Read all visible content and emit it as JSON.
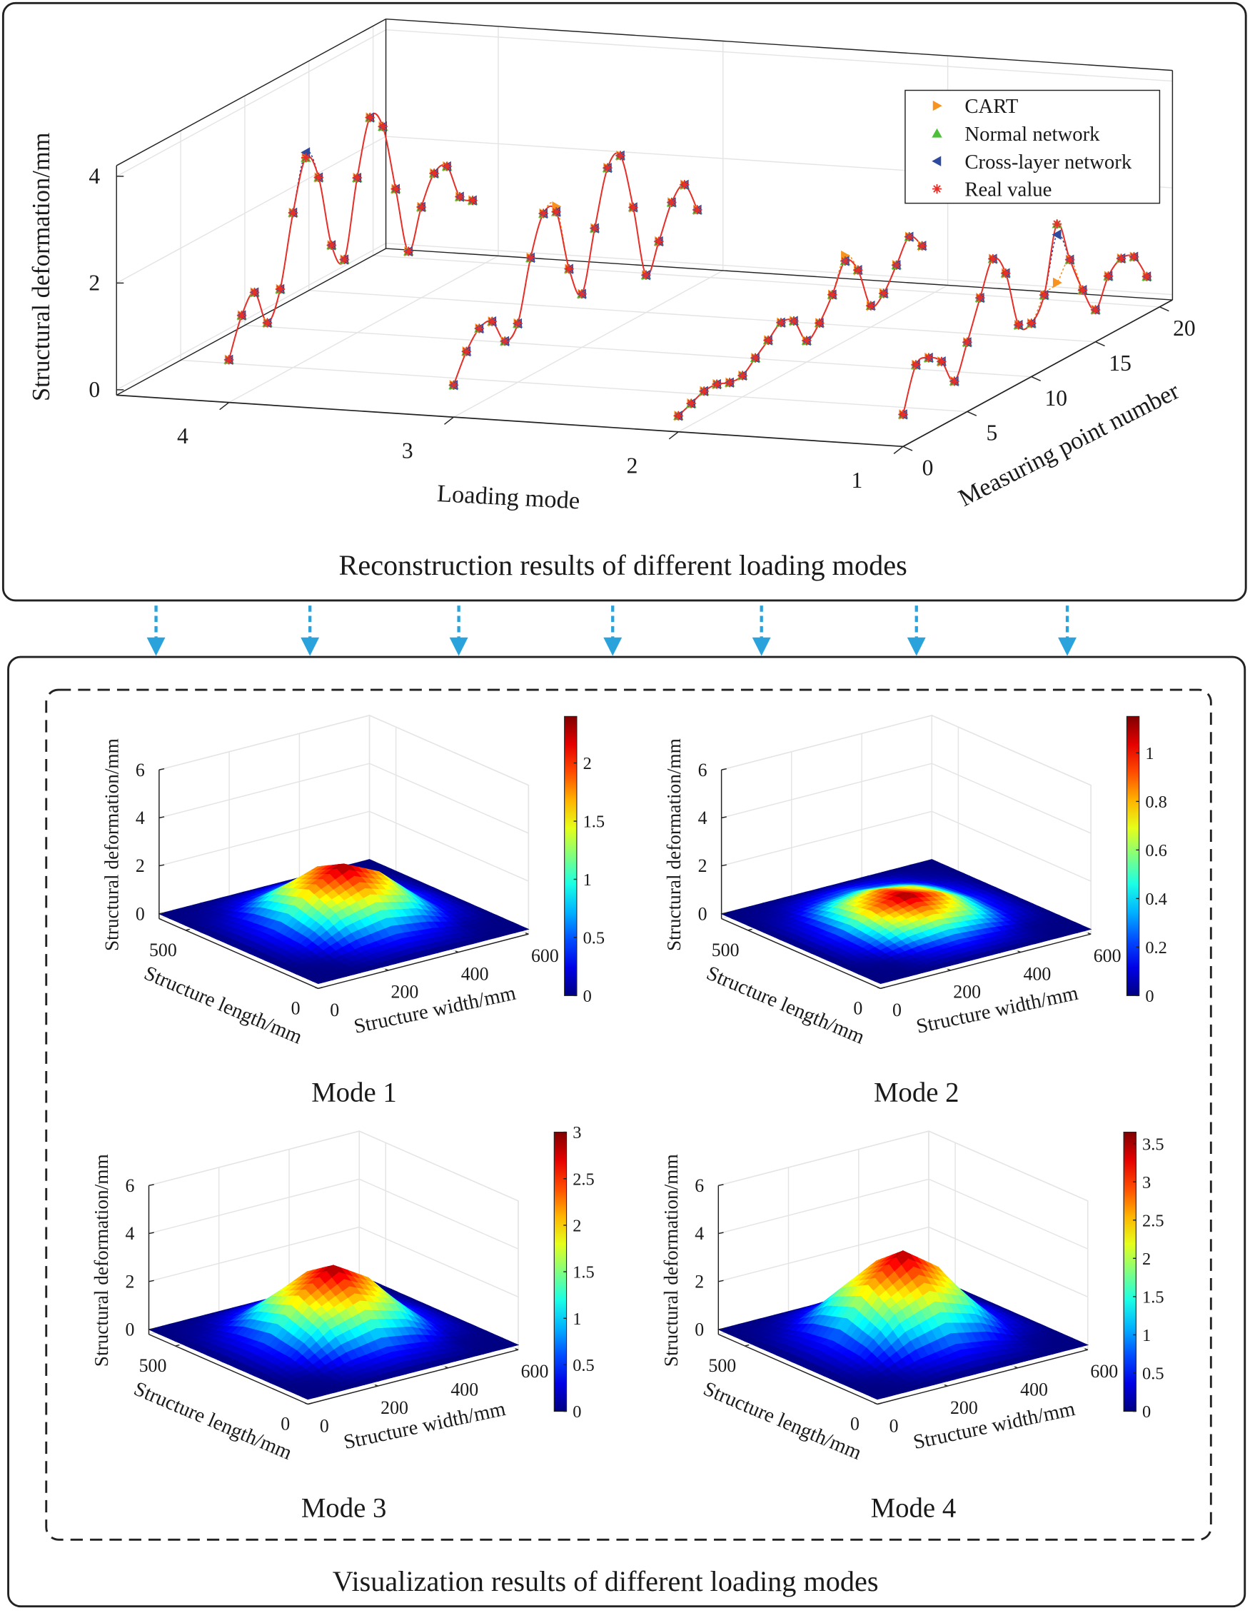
{
  "caption_top": "Reconstruction results of different loading modes",
  "caption_bottom": "Visualization results of different loading modes",
  "chart_data": [
    {
      "type": "line3d",
      "xlabel": "Loading mode",
      "ylabel": "Measuring point number",
      "zlabel": "Structural deformation/mm",
      "modes": [
        1,
        2,
        3,
        4
      ],
      "x": [
        0,
        1,
        2,
        3,
        4,
        5,
        6,
        7,
        8,
        9,
        10,
        11,
        12,
        13,
        14,
        15,
        16,
        17,
        18,
        19
      ],
      "xlim": [
        1,
        4.5
      ],
      "xticks": [
        1,
        2,
        3,
        4
      ],
      "ylim": [
        0,
        21
      ],
      "yticks": [
        0,
        5,
        10,
        15,
        20
      ],
      "zlim": [
        -0.1,
        4.2
      ],
      "zticks": [
        0,
        2,
        4
      ],
      "grid": true,
      "legend": "upper right",
      "series": [
        {
          "name": "CART",
          "color": "#f7931e",
          "marker": "triangle-right",
          "values": [
            [
              0.5,
              1.3,
              1.3,
              1.1,
              0.6,
              1.2,
              1.9,
              2.5,
              2.1,
              1.0,
              0.9,
              1.3,
              1.4,
              1.7,
              1.0,
              0.5,
              1.0,
              1.2,
              1.1,
              0.6
            ],
            [
              0.2,
              0.3,
              0.4,
              0.4,
              0.3,
              0.3,
              0.5,
              0.7,
              0.9,
              0.8,
              0.3,
              0.5,
              0.9,
              1.5,
              1.1,
              0.3,
              0.4,
              0.8,
              1.2,
              0.9
            ],
            [
              0.5,
              1.0,
              1.3,
              1.3,
              0.8,
              1.0,
              2.1,
              2.8,
              2.8,
              1.5,
              0.9,
              2.0,
              3.0,
              3.1,
              2.0,
              0.6,
              1.1,
              1.7,
              1.9,
              1.3
            ],
            [
              0.7,
              1.4,
              1.7,
              1.0,
              1.5,
              2.8,
              3.7,
              3.2,
              1.8,
              1.4,
              2.8,
              3.8,
              3.5,
              2.2,
              0.9,
              1.6,
              2.1,
              2.1,
              1.4,
              1.2
            ]
          ]
        },
        {
          "name": "Normal network",
          "color": "#4dbf3a",
          "marker": "triangle-up",
          "values": [
            [
              0.5,
              1.3,
              1.3,
              1.1,
              0.6,
              1.2,
              1.9,
              2.5,
              2.1,
              1.0,
              0.9,
              1.3,
              2.5,
              1.7,
              1.0,
              0.5,
              1.0,
              1.2,
              1.1,
              0.6
            ],
            [
              0.2,
              0.3,
              0.4,
              0.4,
              0.3,
              0.3,
              0.5,
              0.7,
              0.9,
              0.8,
              0.3,
              0.5,
              0.9,
              1.4,
              1.1,
              0.3,
              0.4,
              0.8,
              1.2,
              0.9
            ],
            [
              0.5,
              1.0,
              1.3,
              1.3,
              0.8,
              1.0,
              2.1,
              2.8,
              2.7,
              1.5,
              0.9,
              2.0,
              3.0,
              3.1,
              2.0,
              0.6,
              1.1,
              1.7,
              1.9,
              1.3
            ],
            [
              0.7,
              1.4,
              1.7,
              1.0,
              1.5,
              2.8,
              3.7,
              3.2,
              1.8,
              1.4,
              2.8,
              3.8,
              3.5,
              2.2,
              0.9,
              1.6,
              2.1,
              2.1,
              1.4,
              1.2
            ]
          ]
        },
        {
          "name": "Cross-layer network",
          "color": "#2e4a9e",
          "marker": "triangle-left",
          "values": [
            [
              0.5,
              1.3,
              1.3,
              1.1,
              0.6,
              1.2,
              1.9,
              2.5,
              2.1,
              1.0,
              0.9,
              1.3,
              2.3,
              1.7,
              1.0,
              0.5,
              1.0,
              1.2,
              1.1,
              0.6
            ],
            [
              0.2,
              0.3,
              0.4,
              0.4,
              0.3,
              0.3,
              0.5,
              0.7,
              0.9,
              0.8,
              0.3,
              0.5,
              0.9,
              1.4,
              1.1,
              0.3,
              0.4,
              0.8,
              1.2,
              0.9
            ],
            [
              0.5,
              1.0,
              1.3,
              1.3,
              0.8,
              1.0,
              2.1,
              2.8,
              2.7,
              1.5,
              0.9,
              2.0,
              3.0,
              3.1,
              2.0,
              0.6,
              1.1,
              1.7,
              1.9,
              1.3
            ],
            [
              0.7,
              1.4,
              1.7,
              1.0,
              1.5,
              2.8,
              3.8,
              3.2,
              1.8,
              1.4,
              2.8,
              3.8,
              3.5,
              2.2,
              0.9,
              1.6,
              2.1,
              2.1,
              1.4,
              1.2
            ]
          ]
        },
        {
          "name": "Real value",
          "color": "#e8302a",
          "marker": "asterisk",
          "values": [
            [
              0.5,
              1.3,
              1.3,
              1.1,
              0.6,
              1.2,
              1.9,
              2.5,
              2.1,
              1.0,
              0.9,
              1.3,
              2.5,
              1.7,
              1.0,
              0.5,
              1.0,
              1.2,
              1.1,
              0.6
            ],
            [
              0.2,
              0.3,
              0.4,
              0.4,
              0.3,
              0.3,
              0.5,
              0.7,
              0.9,
              0.8,
              0.3,
              0.5,
              0.9,
              1.4,
              1.1,
              0.3,
              0.4,
              0.8,
              1.2,
              0.9
            ],
            [
              0.5,
              1.0,
              1.3,
              1.3,
              0.8,
              1.0,
              2.1,
              2.8,
              2.7,
              1.5,
              0.9,
              2.0,
              3.0,
              3.1,
              2.0,
              0.6,
              1.1,
              1.7,
              1.9,
              1.3
            ],
            [
              0.7,
              1.4,
              1.7,
              1.0,
              1.5,
              2.8,
              3.7,
              3.2,
              1.8,
              1.4,
              2.8,
              3.8,
              3.5,
              2.2,
              0.9,
              1.6,
              2.1,
              2.1,
              1.4,
              1.2
            ]
          ]
        }
      ]
    },
    {
      "type": "surface",
      "title": "Mode 1",
      "xlabel": "Structure width/mm",
      "ylabel": "Structure length/mm",
      "zlabel": "Structural deformation/mm",
      "x": [
        0,
        100,
        200,
        300,
        400,
        500,
        600
      ],
      "y": [
        0,
        100,
        200,
        300,
        400,
        500,
        600
      ],
      "z": [
        [
          0,
          0,
          0,
          0,
          0,
          0,
          0
        ],
        [
          0,
          0.05,
          0.3,
          0.45,
          0.3,
          0.05,
          0
        ],
        [
          0,
          0.3,
          1.2,
          1.6,
          1.2,
          0.3,
          0
        ],
        [
          0,
          0.4,
          1.7,
          2.4,
          1.7,
          0.4,
          0
        ],
        [
          0,
          0.3,
          1.3,
          1.8,
          1.3,
          0.3,
          0
        ],
        [
          0,
          0.1,
          0.4,
          0.6,
          0.4,
          0.1,
          0
        ],
        [
          0,
          0,
          0,
          0,
          0,
          0,
          0
        ]
      ],
      "xlim": [
        0,
        600
      ],
      "xticks": [
        0,
        200,
        400,
        600
      ],
      "ylim": [
        0,
        600
      ],
      "yticks": [
        0,
        500
      ],
      "zlim": [
        -0.2,
        6
      ],
      "zticks": [
        0,
        2,
        4,
        6
      ],
      "grid": true,
      "colormap": "jet",
      "clim": [
        0,
        2.4
      ],
      "cticks": [
        0,
        0.5,
        1,
        1.5,
        2
      ]
    },
    {
      "type": "surface",
      "title": "Mode 2",
      "xlabel": "Structure width/mm",
      "ylabel": "Structure length/mm",
      "zlabel": "Structural deformation/mm",
      "x": [
        0,
        100,
        200,
        300,
        400,
        500,
        600
      ],
      "y": [
        0,
        100,
        200,
        300,
        400,
        500,
        600
      ],
      "z": [
        [
          0,
          0,
          0,
          0,
          0,
          0,
          0
        ],
        [
          0,
          0.02,
          0.14,
          0.22,
          0.14,
          0.02,
          0
        ],
        [
          0,
          0.14,
          0.58,
          0.77,
          0.58,
          0.14,
          0
        ],
        [
          0,
          0.19,
          0.82,
          1.15,
          0.82,
          0.19,
          0
        ],
        [
          0,
          0.14,
          0.62,
          0.86,
          0.62,
          0.14,
          0
        ],
        [
          0,
          0.05,
          0.19,
          0.29,
          0.19,
          0.05,
          0
        ],
        [
          0,
          0,
          0,
          0,
          0,
          0,
          0
        ]
      ],
      "xlim": [
        0,
        600
      ],
      "xticks": [
        0,
        200,
        400,
        600
      ],
      "ylim": [
        0,
        600
      ],
      "yticks": [
        0,
        500
      ],
      "zlim": [
        -0.2,
        6
      ],
      "zticks": [
        0,
        2,
        4,
        6
      ],
      "grid": true,
      "colormap": "jet",
      "clim": [
        0,
        1.15
      ],
      "cticks": [
        0,
        0.2,
        0.4,
        0.6,
        0.8,
        1
      ]
    },
    {
      "type": "surface",
      "title": "Mode 3",
      "xlabel": "Structure width/mm",
      "ylabel": "Structure length/mm",
      "zlabel": "Structural deformation/mm",
      "x": [
        0,
        100,
        200,
        300,
        400,
        500,
        600
      ],
      "y": [
        0,
        100,
        200,
        300,
        400,
        500,
        600
      ],
      "z": [
        [
          0,
          0,
          0,
          0,
          0,
          0,
          0
        ],
        [
          0,
          0.06,
          0.38,
          0.56,
          0.38,
          0.06,
          0
        ],
        [
          0,
          0.38,
          1.5,
          2.0,
          1.5,
          0.38,
          0
        ],
        [
          0,
          0.5,
          2.1,
          3.0,
          2.1,
          0.5,
          0
        ],
        [
          0,
          0.38,
          1.6,
          2.25,
          1.6,
          0.38,
          0
        ],
        [
          0,
          0.12,
          0.5,
          0.75,
          0.5,
          0.12,
          0
        ],
        [
          0,
          0,
          0,
          0,
          0,
          0,
          0
        ]
      ],
      "xlim": [
        0,
        600
      ],
      "xticks": [
        0,
        200,
        400,
        600
      ],
      "ylim": [
        0,
        600
      ],
      "yticks": [
        0,
        500
      ],
      "zlim": [
        -0.2,
        6
      ],
      "zticks": [
        0,
        2,
        4,
        6
      ],
      "grid": true,
      "colormap": "jet",
      "clim": [
        0,
        3
      ],
      "cticks": [
        0,
        0.5,
        1,
        1.5,
        2,
        2.5,
        3
      ]
    },
    {
      "type": "surface",
      "title": "Mode 4",
      "xlabel": "Structure width/mm",
      "ylabel": "Structure length/mm",
      "zlabel": "Structural deformation/mm",
      "x": [
        0,
        100,
        200,
        300,
        400,
        500,
        600
      ],
      "y": [
        0,
        100,
        200,
        300,
        400,
        500,
        600
      ],
      "z": [
        [
          0,
          0,
          0,
          0,
          0,
          0,
          0
        ],
        [
          0,
          0.08,
          0.45,
          0.68,
          0.45,
          0.08,
          0
        ],
        [
          0,
          0.45,
          1.8,
          2.4,
          1.8,
          0.45,
          0
        ],
        [
          0,
          0.6,
          2.55,
          3.6,
          2.55,
          0.6,
          0
        ],
        [
          0,
          0.45,
          1.95,
          2.7,
          1.95,
          0.45,
          0
        ],
        [
          0,
          0.15,
          0.6,
          0.9,
          0.6,
          0.15,
          0
        ],
        [
          0,
          0,
          0,
          0,
          0,
          0,
          0
        ]
      ],
      "xlim": [
        0,
        600
      ],
      "xticks": [
        0,
        200,
        400,
        600
      ],
      "ylim": [
        0,
        600
      ],
      "yticks": [
        0,
        500
      ],
      "zlim": [
        -0.2,
        6
      ],
      "zticks": [
        0,
        2,
        4,
        6
      ],
      "grid": true,
      "colormap": "jet",
      "clim": [
        0,
        3.65
      ],
      "cticks": [
        0,
        0.5,
        1,
        1.5,
        2,
        2.5,
        3,
        3.5
      ]
    }
  ]
}
